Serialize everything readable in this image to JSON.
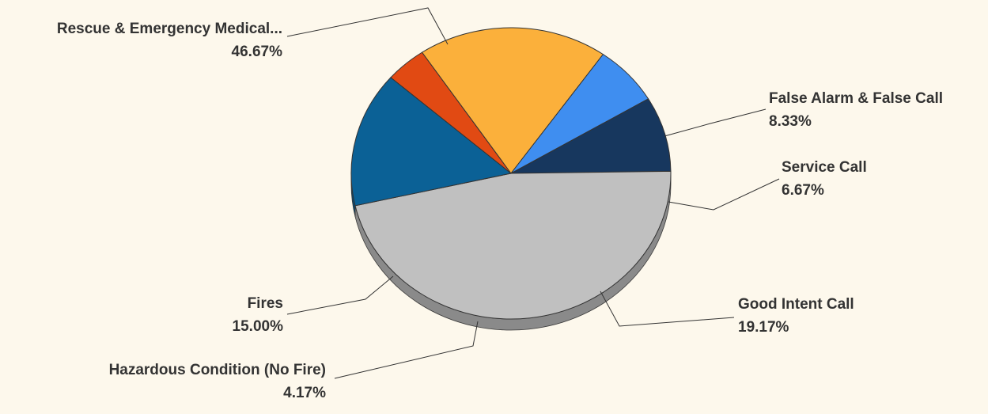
{
  "chart_data": {
    "type": "pie",
    "style": "3d",
    "background": "#fdf8ec",
    "slices": [
      {
        "label": "False Alarm & False Call",
        "value": 8.33,
        "pct_label": "8.33%",
        "color": "#17375e"
      },
      {
        "label": "Rescue & Emergency Medical...",
        "value": 46.67,
        "pct_label": "46.67%",
        "color": "#c0c0c0"
      },
      {
        "label": "Fires",
        "value": 15.0,
        "pct_label": "15.00%",
        "color": "#0b6196"
      },
      {
        "label": "Hazardous Condition (No Fire)",
        "value": 4.17,
        "pct_label": "4.17%",
        "color": "#e14a13"
      },
      {
        "label": "Good Intent Call",
        "value": 19.17,
        "pct_label": "19.17%",
        "color": "#fbb03b"
      },
      {
        "label": "Service Call",
        "value": 6.67,
        "pct_label": "6.67%",
        "color": "#3f8ef0"
      }
    ]
  }
}
